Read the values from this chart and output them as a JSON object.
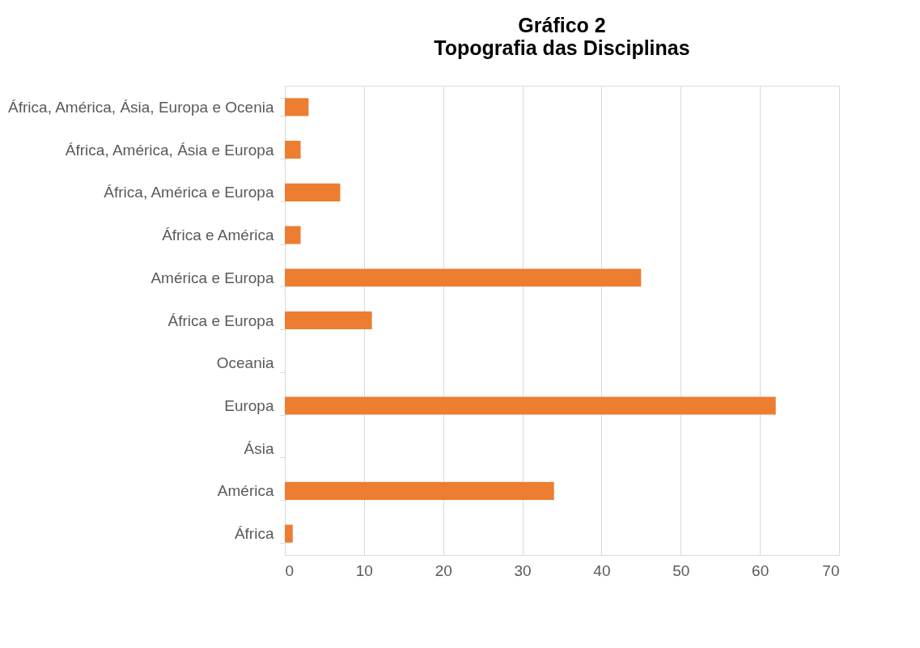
{
  "chart_data": {
    "type": "bar",
    "orientation": "horizontal",
    "title": "Gráfico 2",
    "subtitle": "Topografia das Disciplinas",
    "categories": [
      "África, América, Ásia, Europa e Ocenia",
      "África, América, Ásia e Europa",
      "África, América e Europa",
      "África e América",
      "América e Europa",
      "África e Europa",
      "Oceania",
      "Europa",
      "Ásia",
      "América",
      "África"
    ],
    "values": [
      3,
      2,
      7,
      2,
      45,
      11,
      0,
      62,
      0,
      34,
      1
    ],
    "color": "#ed7d31",
    "xlim": [
      0,
      70
    ],
    "xticks": [
      0,
      10,
      20,
      30,
      40,
      50,
      60,
      70
    ],
    "grid": "x"
  }
}
